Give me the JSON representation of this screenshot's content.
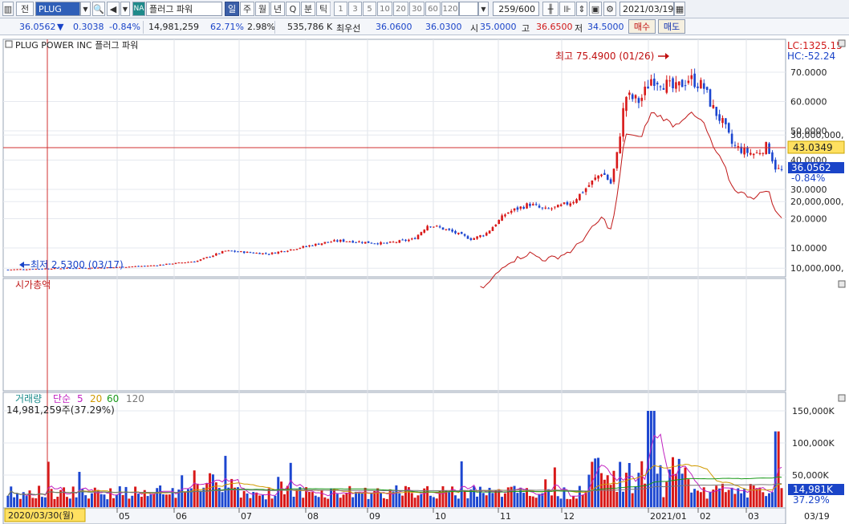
{
  "toolbar": {
    "symbol": "PLUG",
    "code_prefix": "전",
    "market_badge": "NA",
    "stock_name": "플러그 파워",
    "periods": [
      "일",
      "주",
      "월",
      "년",
      "Q",
      "분",
      "틱"
    ],
    "active_period": "일",
    "intervals": [
      "1",
      "3",
      "5",
      "10",
      "20",
      "30",
      "60",
      "120"
    ],
    "count": "259/600",
    "date": "2021/03/19"
  },
  "quote": {
    "price": "36.0562",
    "arrow": "▼",
    "change": "0.3038",
    "change_pct": "-0.84%",
    "volume": "14,981,259",
    "vol_ratio": "62.71%",
    "vol_ratio2": "2.98%",
    "amount": "535,786 K",
    "bid_label": "최우선",
    "bid1": "36.0600",
    "bid2": "36.0300",
    "open_label": "시",
    "open": "35.0000",
    "high_label": "고",
    "high": "36.6500",
    "low_label": "저",
    "low": "34.5000",
    "buy_label": "매수",
    "sell_label": "매도"
  },
  "price_panel": {
    "title": "PLUG POWER INC  플러그 파워",
    "lc": "LC:1325.15",
    "hc": "HC:-52.24",
    "high_note": "최고 75.4900 (01/26)",
    "low_note": "최저 2.5300 (03/17)",
    "cross_value": "43.0349",
    "last_value": "36.0562",
    "last_pct": "-0.84%",
    "y_ticks": [
      "70.0000",
      "60.0000",
      "50.0000",
      "40.0000",
      "30.0000",
      "20.0000",
      "10.0000"
    ]
  },
  "mcap_panel": {
    "title": "시가총액",
    "y_ticks": [
      "30,000,000,",
      "20,000,000,",
      "10,000,000,"
    ]
  },
  "volume_panel": {
    "title": "거래량",
    "ma_label": "단순",
    "ma_periods": [
      "5",
      "20",
      "60",
      "120"
    ],
    "current": "14,981,259주(37.29%)",
    "y_ticks": [
      "150,000K",
      "100,000K",
      "50,000K"
    ],
    "last_value": "14,981K",
    "last_pct": "37.29%"
  },
  "x_axis": {
    "cursor_date": "2020/03/30(월)",
    "months": [
      "05",
      "06",
      "07",
      "08",
      "09",
      "10",
      "11",
      "12",
      "2021/01",
      "02",
      "03"
    ],
    "last_date": "03/19"
  },
  "colors": {
    "up": "#d81818",
    "down": "#1c46d0",
    "crosshair": "#d03030",
    "mcap_line": "#c01818",
    "ma5": "#c020c0",
    "ma20": "#d09a00",
    "ma60": "#1a9a1a",
    "ma120": "#777777"
  }
}
